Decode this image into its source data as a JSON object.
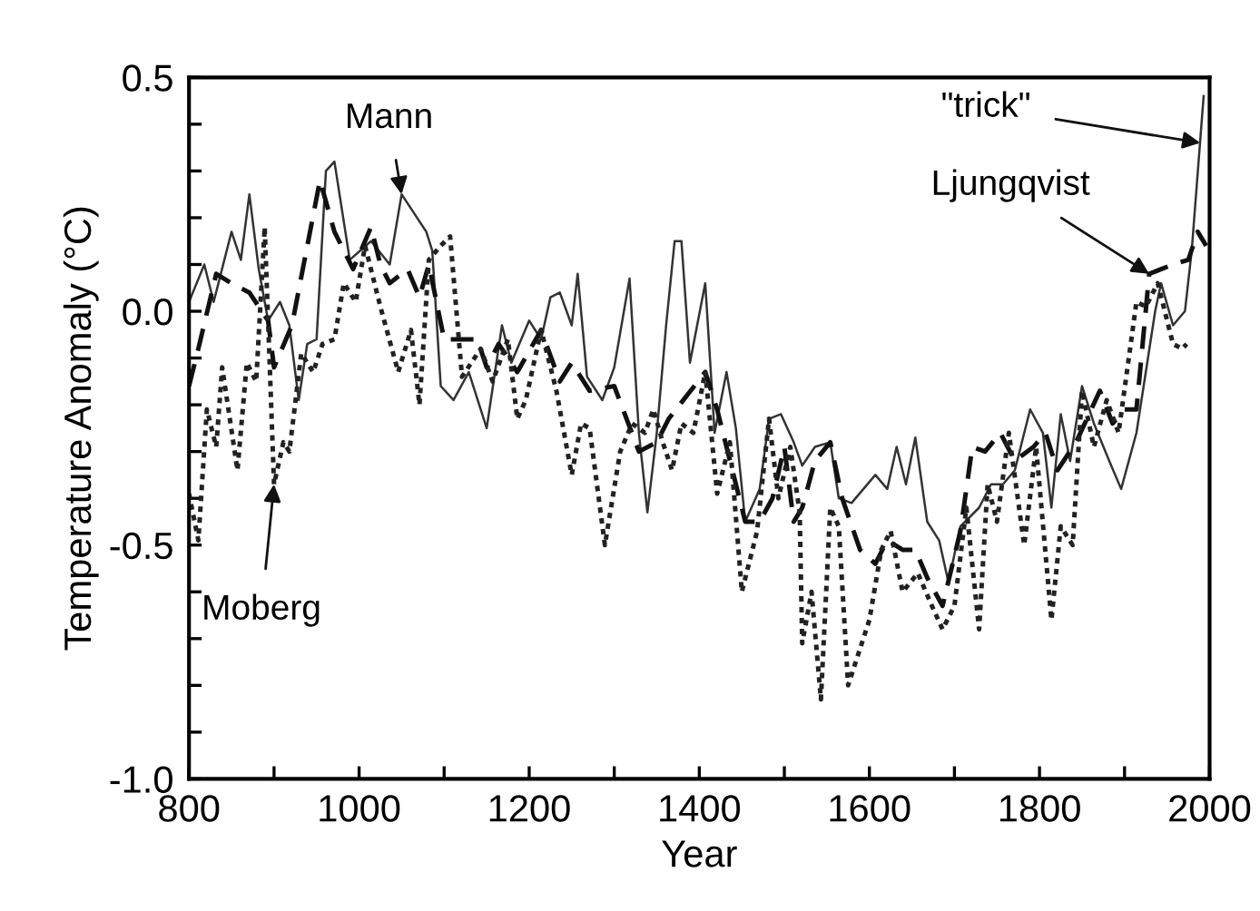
{
  "chart_data": {
    "type": "line",
    "xlabel": "Year",
    "ylabel": "Temperature Anomaly (°C)",
    "xlim": [
      800,
      2000
    ],
    "ylim": [
      -1.0,
      0.5
    ],
    "xticks": [
      800,
      {
        "value": 900,
        "label": null
      },
      1000,
      {
        "value": 1100,
        "label": null
      },
      1200,
      {
        "value": 1300,
        "label": null
      },
      1400,
      {
        "value": 1500,
        "label": null
      },
      1600,
      {
        "value": 1700,
        "label": null
      },
      1800,
      {
        "value": 1900,
        "label": null
      },
      2000
    ],
    "yticks": [
      {
        "value": -1.0,
        "label": "-1.0"
      },
      {
        "value": -0.9,
        "label": null
      },
      {
        "value": -0.8,
        "label": null
      },
      {
        "value": -0.7,
        "label": null
      },
      {
        "value": -0.6,
        "label": null
      },
      {
        "value": -0.5,
        "label": "-0.5"
      },
      {
        "value": -0.4,
        "label": null
      },
      {
        "value": -0.3,
        "label": null
      },
      {
        "value": -0.2,
        "label": null
      },
      {
        "value": -0.1,
        "label": null
      },
      {
        "value": 0.0,
        "label": "0.0"
      },
      {
        "value": 0.1,
        "label": null
      },
      {
        "value": 0.2,
        "label": null
      },
      {
        "value": 0.3,
        "label": null
      },
      {
        "value": 0.4,
        "label": null
      },
      {
        "value": 0.5,
        "label": "0.5"
      }
    ],
    "grid": false,
    "marker": "none",
    "series": [
      {
        "color": "#333333",
        "line_style": "solid",
        "x": [
          800,
          818,
          829,
          850,
          861,
          871,
          882,
          893,
          907,
          918,
          929,
          939,
          950,
          961,
          971,
          989,
          1014,
          1036,
          1050,
          1079,
          1086,
          1096,
          1111,
          1129,
          1150,
          1168,
          1179,
          1200,
          1214,
          1225,
          1236,
          1250,
          1257,
          1268,
          1286,
          1300,
          1318,
          1329,
          1339,
          1350,
          1361,
          1371,
          1379,
          1389,
          1407,
          1418,
          1432,
          1443,
          1454,
          1471,
          1482,
          1496,
          1511,
          1521,
          1536,
          1554,
          1564,
          1579,
          1607,
          1621,
          1632,
          1643,
          1654,
          1668,
          1682,
          1693,
          1707,
          1729,
          1743,
          1757,
          1771,
          1789,
          1804,
          1814,
          1825,
          1836,
          1850,
          1864,
          1882,
          1896,
          1914,
          1936,
          1943,
          1957,
          1971,
          1979,
          1993
        ],
        "values": [
          0.02,
          0.1,
          0.02,
          0.17,
          0.11,
          0.25,
          0.09,
          -0.02,
          0.02,
          -0.03,
          -0.19,
          -0.07,
          -0.06,
          0.3,
          0.32,
          0.11,
          0.15,
          0.1,
          0.25,
          0.17,
          0.13,
          -0.16,
          -0.19,
          -0.13,
          -0.25,
          -0.03,
          -0.11,
          -0.02,
          -0.06,
          0.03,
          0.04,
          -0.03,
          0.08,
          -0.14,
          -0.19,
          -0.12,
          0.07,
          -0.26,
          -0.43,
          -0.26,
          -0.03,
          0.15,
          0.15,
          -0.11,
          0.06,
          -0.26,
          -0.13,
          -0.25,
          -0.45,
          -0.38,
          -0.23,
          -0.22,
          -0.28,
          -0.33,
          -0.29,
          -0.28,
          -0.4,
          -0.41,
          -0.35,
          -0.38,
          -0.29,
          -0.37,
          -0.27,
          -0.45,
          -0.49,
          -0.58,
          -0.46,
          -0.42,
          -0.37,
          -0.37,
          -0.34,
          -0.21,
          -0.26,
          -0.42,
          -0.22,
          -0.32,
          -0.16,
          -0.24,
          -0.32,
          -0.38,
          -0.26,
          0.0,
          0.06,
          -0.03,
          0.0,
          0.13,
          0.46
        ]
      },
      {
        "color": "#111111",
        "line_style": "dashed",
        "x": [
          800,
          811,
          832,
          850,
          871,
          893,
          900,
          921,
          954,
          971,
          993,
          1014,
          1025,
          1036,
          1057,
          1071,
          1082,
          1100,
          1118,
          1139,
          1150,
          1164,
          1186,
          1214,
          1236,
          1250,
          1271,
          1300,
          1329,
          1350,
          1364,
          1407,
          1421,
          1443,
          1454,
          1471,
          1486,
          1500,
          1511,
          1521,
          1536,
          1554,
          1568,
          1589,
          1607,
          1621,
          1639,
          1654,
          1668,
          1686,
          1707,
          1721,
          1736,
          1754,
          1771,
          1793,
          1807,
          1821,
          1843,
          1871,
          1886,
          1900,
          1914,
          1929,
          1943,
          1957,
          1975,
          1986,
          1996
        ],
        "values": [
          -0.16,
          -0.08,
          0.08,
          0.06,
          0.04,
          -0.02,
          -0.12,
          -0.03,
          0.28,
          0.17,
          0.09,
          0.18,
          0.1,
          0.06,
          0.09,
          0.03,
          0.1,
          -0.06,
          -0.06,
          -0.06,
          -0.12,
          -0.07,
          -0.13,
          -0.04,
          -0.15,
          -0.11,
          -0.17,
          -0.16,
          -0.3,
          -0.28,
          -0.23,
          -0.13,
          -0.21,
          -0.37,
          -0.45,
          -0.45,
          -0.4,
          -0.29,
          -0.45,
          -0.42,
          -0.32,
          -0.28,
          -0.4,
          -0.51,
          -0.54,
          -0.49,
          -0.51,
          -0.51,
          -0.57,
          -0.63,
          -0.47,
          -0.29,
          -0.3,
          -0.26,
          -0.32,
          -0.29,
          -0.26,
          -0.34,
          -0.28,
          -0.17,
          -0.24,
          -0.21,
          -0.21,
          0.08,
          0.09,
          0.1,
          0.11,
          0.17,
          0.14
        ]
      },
      {
        "color": "#222222",
        "line_style": "dotted",
        "x": [
          800,
          811,
          821,
          832,
          839,
          857,
          868,
          879,
          889,
          900,
          911,
          918,
          932,
          946,
          957,
          971,
          982,
          996,
          1007,
          1025,
          1046,
          1061,
          1071,
          1082,
          1096,
          1107,
          1121,
          1143,
          1157,
          1175,
          1186,
          1196,
          1214,
          1232,
          1250,
          1261,
          1271,
          1289,
          1307,
          1321,
          1336,
          1346,
          1357,
          1368,
          1379,
          1393,
          1407,
          1421,
          1436,
          1450,
          1468,
          1482,
          1493,
          1507,
          1518,
          1521,
          1532,
          1543,
          1554,
          1564,
          1575,
          1600,
          1614,
          1625,
          1639,
          1657,
          1671,
          1686,
          1700,
          1714,
          1729,
          1739,
          1750,
          1764,
          1782,
          1796,
          1814,
          1825,
          1839,
          1850,
          1864,
          1879,
          1893,
          1914,
          1925,
          1939,
          1957,
          1968,
          1973
        ],
        "values": [
          -0.39,
          -0.49,
          -0.21,
          -0.29,
          -0.12,
          -0.34,
          -0.11,
          -0.15,
          0.18,
          -0.37,
          -0.28,
          -0.3,
          -0.09,
          -0.13,
          -0.07,
          -0.06,
          0.06,
          0.02,
          0.14,
          0.01,
          -0.13,
          -0.04,
          -0.2,
          0.11,
          0.14,
          0.16,
          -0.14,
          -0.08,
          -0.15,
          -0.06,
          -0.23,
          -0.19,
          -0.04,
          -0.17,
          -0.35,
          -0.24,
          -0.25,
          -0.5,
          -0.3,
          -0.24,
          -0.26,
          -0.21,
          -0.28,
          -0.34,
          -0.24,
          -0.26,
          -0.13,
          -0.39,
          -0.28,
          -0.6,
          -0.47,
          -0.23,
          -0.4,
          -0.29,
          -0.43,
          -0.71,
          -0.6,
          -0.83,
          -0.42,
          -0.46,
          -0.8,
          -0.66,
          -0.51,
          -0.47,
          -0.6,
          -0.56,
          -0.62,
          -0.68,
          -0.63,
          -0.42,
          -0.68,
          -0.37,
          -0.45,
          -0.26,
          -0.5,
          -0.29,
          -0.66,
          -0.46,
          -0.5,
          -0.17,
          -0.29,
          -0.19,
          -0.26,
          0.02,
          0.01,
          0.06,
          -0.07,
          -0.08,
          -0.07
        ]
      }
    ],
    "annotations": [
      {
        "text": "Mann",
        "x": 1050,
        "y": 0.25
      },
      {
        "text": "Moberg",
        "x": 900,
        "y": -0.37
      },
      {
        "text": "\"trick\"",
        "x": 1989,
        "y": 0.36
      },
      {
        "text": "Ljungqvist",
        "x": 1929,
        "y": 0.08
      }
    ]
  }
}
